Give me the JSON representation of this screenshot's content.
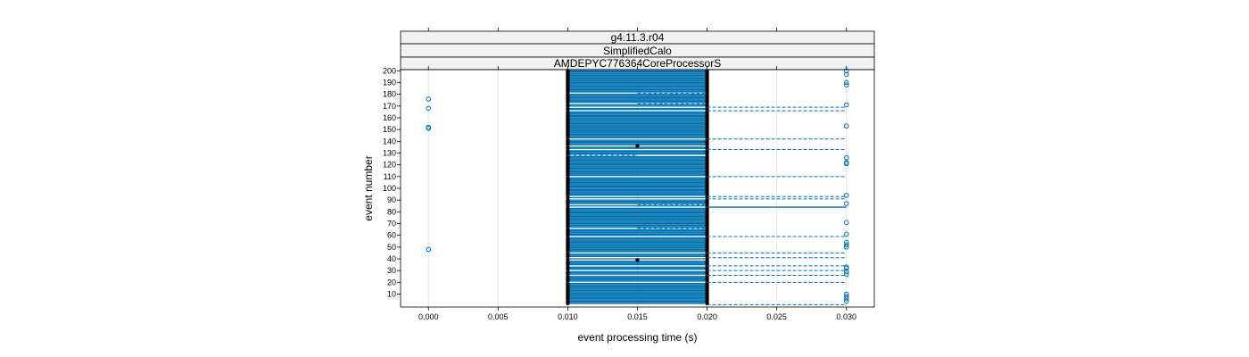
{
  "chart_data": {
    "type": "scatter",
    "strips": [
      "g4.11.3.r04",
      "SimplifiedCalo",
      "AMDEPYC776364CoreProcessorS"
    ],
    "xlabel": "event processing time (s)",
    "ylabel": "event number",
    "xlim": [
      -0.002,
      0.032
    ],
    "ylim": [
      -1,
      201
    ],
    "x_ticks": [
      0.0,
      0.005,
      0.01,
      0.015,
      0.02,
      0.025,
      0.03
    ],
    "x_tick_labels": [
      "0.000",
      "0.005",
      "0.010",
      "0.015",
      "0.020",
      "0.025",
      "0.030"
    ],
    "y_ticks": [
      10,
      20,
      30,
      40,
      50,
      60,
      70,
      80,
      90,
      100,
      110,
      120,
      130,
      140,
      150,
      160,
      170,
      180,
      190,
      200
    ],
    "grid": "vertical",
    "colors": {
      "series": "#0072b2",
      "emphasis": "#000000",
      "strip_bg": "#f2f2f2",
      "grid": "#e6e6e6"
    },
    "series": [
      {
        "marker": "solid-dot",
        "color": "#000000",
        "points": [
          [
            0.015,
            136
          ],
          [
            0.015,
            39
          ]
        ]
      },
      {
        "marker": "open-circle",
        "color": "#0072b2",
        "points": [
          [
            0.0,
            176
          ],
          [
            0.0,
            168
          ],
          [
            0.0,
            152
          ],
          [
            0.0,
            151
          ],
          [
            0.0,
            48
          ],
          [
            0.03,
            200
          ],
          [
            0.03,
            197
          ],
          [
            0.03,
            190
          ],
          [
            0.03,
            188
          ],
          [
            0.03,
            171
          ],
          [
            0.03,
            153
          ],
          [
            0.03,
            126
          ],
          [
            0.03,
            122
          ],
          [
            0.03,
            121
          ],
          [
            0.03,
            94
          ],
          [
            0.03,
            87
          ],
          [
            0.03,
            71
          ],
          [
            0.03,
            61
          ],
          [
            0.03,
            54
          ],
          [
            0.03,
            52
          ],
          [
            0.03,
            50
          ],
          [
            0.03,
            33
          ],
          [
            0.03,
            32
          ],
          [
            0.03,
            29
          ],
          [
            0.03,
            27
          ],
          [
            0.03,
            10
          ],
          [
            0.03,
            8
          ],
          [
            0.03,
            6
          ],
          [
            0.03,
            4
          ]
        ]
      }
    ],
    "solid_segments": [
      [
        0.02,
        0.03,
        84
      ]
    ],
    "dashed_segments": [
      [
        0.02,
        0.03,
        169
      ],
      [
        0.02,
        0.03,
        166
      ],
      [
        0.02,
        0.03,
        142
      ],
      [
        0.02,
        0.03,
        133
      ],
      [
        0.02,
        0.03,
        110
      ],
      [
        0.02,
        0.03,
        93
      ],
      [
        0.02,
        0.03,
        91
      ],
      [
        0.02,
        0.03,
        59
      ],
      [
        0.02,
        0.03,
        45
      ],
      [
        0.02,
        0.03,
        41
      ],
      [
        0.02,
        0.03,
        34
      ],
      [
        0.02,
        0.03,
        30
      ],
      [
        0.02,
        0.03,
        26
      ],
      [
        0.02,
        0.03,
        20
      ],
      [
        0.02,
        0.03,
        1
      ],
      [
        0.015,
        0.02,
        181
      ],
      [
        0.015,
        0.02,
        172
      ],
      [
        0.015,
        0.02,
        86
      ],
      [
        0.015,
        0.02,
        66
      ],
      [
        0.01,
        0.015,
        128
      ]
    ]
  }
}
